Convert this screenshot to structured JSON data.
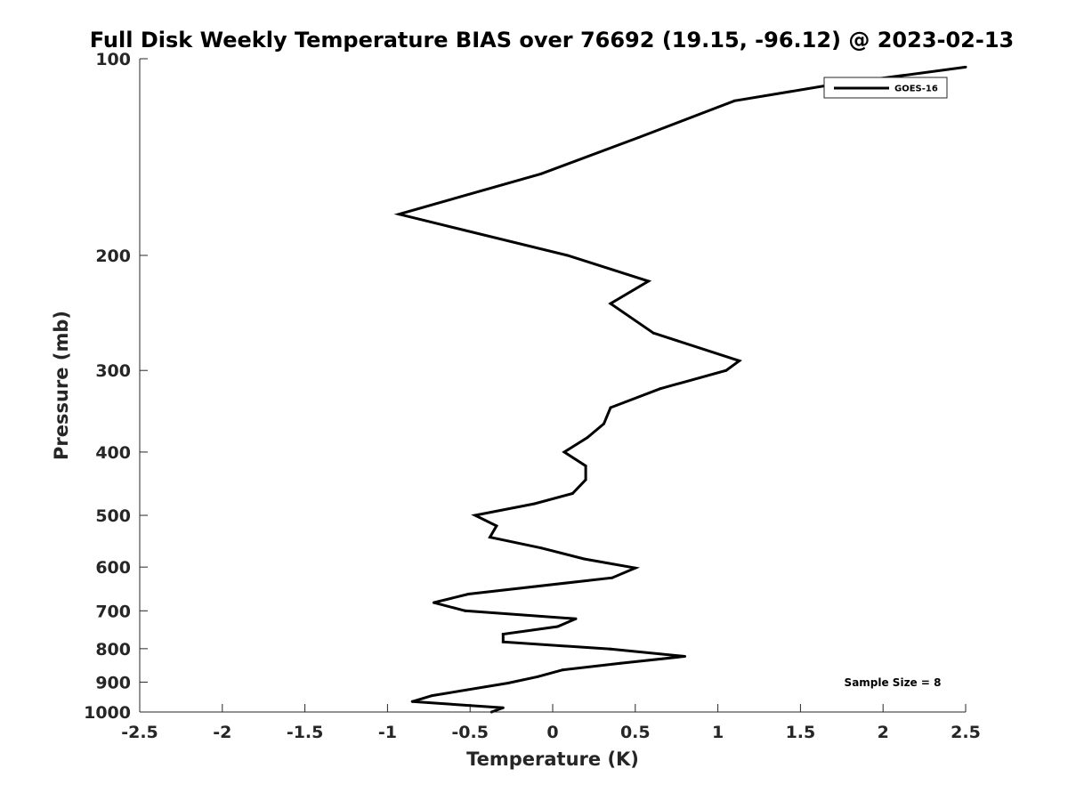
{
  "chart_data": {
    "type": "line",
    "title": "Full Disk Weekly Temperature BIAS over 76692 (19.15, -96.12) @ 2023-02-13",
    "xlabel": "Temperature (K)",
    "ylabel": "Pressure (mb)",
    "xlim": [
      -2.5,
      2.5
    ],
    "ylim": [
      100,
      1000
    ],
    "y_scale": "log",
    "y_reversed": true,
    "x_ticks": [
      "-2.5",
      "-2",
      "-1.5",
      "-1",
      "-0.5",
      "0",
      "0.5",
      "1",
      "1.5",
      "2",
      "2.5"
    ],
    "y_ticks": [
      "100",
      "200",
      "300",
      "400",
      "500",
      "600",
      "700",
      "800",
      "900",
      "1000"
    ],
    "grid": false,
    "legend_position": "top-right",
    "series": [
      {
        "name": "GOES-16",
        "color": "#000000",
        "points": [
          {
            "x": 2.5,
            "y": 103
          },
          {
            "x": 1.65,
            "y": 110
          },
          {
            "x": 1.1,
            "y": 116
          },
          {
            "x": 0.52,
            "y": 132
          },
          {
            "x": -0.07,
            "y": 150
          },
          {
            "x": -0.93,
            "y": 173
          },
          {
            "x": 0.09,
            "y": 200
          },
          {
            "x": 0.58,
            "y": 219
          },
          {
            "x": 0.35,
            "y": 237
          },
          {
            "x": 0.61,
            "y": 263
          },
          {
            "x": 1.13,
            "y": 290
          },
          {
            "x": 1.05,
            "y": 300
          },
          {
            "x": 0.65,
            "y": 320
          },
          {
            "x": 0.35,
            "y": 342
          },
          {
            "x": 0.31,
            "y": 362
          },
          {
            "x": 0.21,
            "y": 380
          },
          {
            "x": 0.07,
            "y": 400
          },
          {
            "x": 0.2,
            "y": 420
          },
          {
            "x": 0.2,
            "y": 441
          },
          {
            "x": 0.12,
            "y": 463
          },
          {
            "x": -0.11,
            "y": 480
          },
          {
            "x": -0.47,
            "y": 500
          },
          {
            "x": -0.34,
            "y": 519
          },
          {
            "x": -0.38,
            "y": 540
          },
          {
            "x": -0.07,
            "y": 561
          },
          {
            "x": 0.19,
            "y": 583
          },
          {
            "x": 0.5,
            "y": 602
          },
          {
            "x": 0.36,
            "y": 623
          },
          {
            "x": -0.51,
            "y": 660
          },
          {
            "x": -0.72,
            "y": 680
          },
          {
            "x": -0.53,
            "y": 700
          },
          {
            "x": 0.14,
            "y": 720
          },
          {
            "x": 0.03,
            "y": 740
          },
          {
            "x": -0.3,
            "y": 760
          },
          {
            "x": -0.3,
            "y": 781
          },
          {
            "x": 0.35,
            "y": 801
          },
          {
            "x": 0.8,
            "y": 822
          },
          {
            "x": 0.41,
            "y": 842
          },
          {
            "x": 0.06,
            "y": 862
          },
          {
            "x": -0.09,
            "y": 883
          },
          {
            "x": -0.27,
            "y": 903
          },
          {
            "x": -0.73,
            "y": 944
          },
          {
            "x": -0.85,
            "y": 964
          },
          {
            "x": -0.3,
            "y": 985
          },
          {
            "x": -0.37,
            "y": 1000
          }
        ]
      }
    ],
    "annotations": [
      {
        "text": "Sample Size = 8",
        "position": "bottom-right"
      }
    ]
  }
}
